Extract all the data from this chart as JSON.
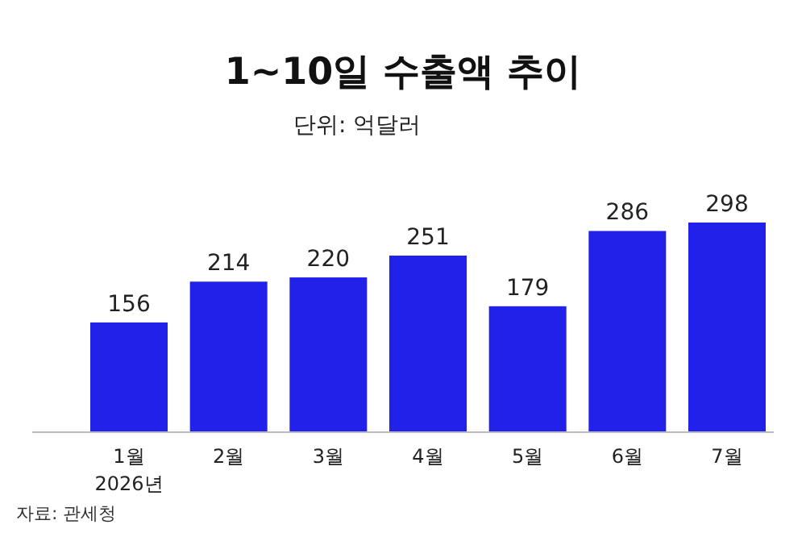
{
  "chart_data": {
    "type": "bar",
    "title": "1~10일  수출액 추이",
    "subtitle": "단위: 억달러",
    "categories": [
      "1월\n2026년",
      "2월",
      "3월",
      "4월",
      "5월",
      "6월",
      "7월"
    ],
    "values": [
      156,
      214,
      220,
      251,
      179,
      286,
      298
    ],
    "color": "#2121ea",
    "data_labels": true,
    "annotations": [
      "자료: 관세청"
    ]
  }
}
